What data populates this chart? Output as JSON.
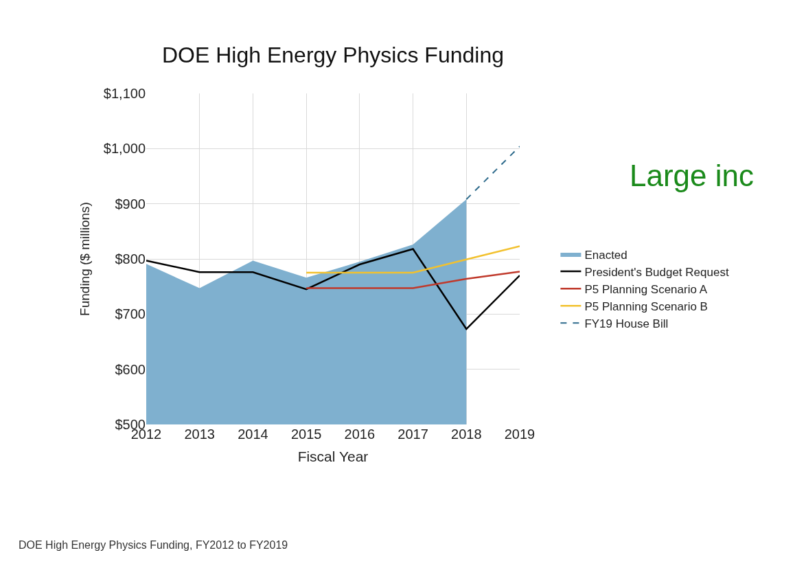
{
  "chart_data": {
    "type": "line",
    "title": "DOE High Energy Physics Funding",
    "xlabel": "Fiscal Year",
    "ylabel": "Funding ($ millions)",
    "series": [
      {
        "name": "Enacted",
        "type": "area",
        "color": "#7fb0cf",
        "x": [
          2012,
          2013,
          2014,
          2015,
          2016,
          2017,
          2018
        ],
        "values": [
          791,
          747,
          797,
          766,
          795,
          826,
          908
        ]
      },
      {
        "name": "President's Budget Request",
        "color": "#000000",
        "x": [
          2012,
          2013,
          2014,
          2015,
          2016,
          2017,
          2018,
          2019
        ],
        "values": [
          797,
          776,
          776,
          745,
          790,
          818,
          673,
          770
        ]
      },
      {
        "name": "P5 Planning Scenario A",
        "color": "#c0392b",
        "x": [
          2015,
          2016,
          2017,
          2018,
          2019
        ],
        "values": [
          747,
          747,
          747,
          764,
          777
        ]
      },
      {
        "name": "P5 Planning Scenario B",
        "color": "#f2c12e",
        "x": [
          2015,
          2016,
          2017,
          2018,
          2019
        ],
        "values": [
          775,
          775,
          775,
          799,
          823
        ]
      },
      {
        "name": "FY19 House Bill",
        "color": "#2e6b8c",
        "line_style": "dashed",
        "x": [
          2018,
          2019
        ],
        "values": [
          908,
          1004
        ]
      }
    ],
    "xlim": [
      2012,
      2019
    ],
    "xticks": [
      2012,
      2013,
      2014,
      2015,
      2016,
      2017,
      2018,
      2019
    ],
    "ylim": [
      500,
      1100
    ],
    "yticks": [
      {
        "value": 500,
        "label": "$500"
      },
      {
        "value": 600,
        "label": "$600"
      },
      {
        "value": 700,
        "label": "$700"
      },
      {
        "value": 800,
        "label": "$800"
      },
      {
        "value": 900,
        "label": "$900"
      },
      {
        "value": 1000,
        "label": "$1,000"
      },
      {
        "value": 1100,
        "label": "$1,100"
      }
    ],
    "grid": true,
    "legend": "right",
    "marker": "none",
    "line_style": "solid",
    "annotations": [
      "Large inc",
      "DOE High Energy Physics Funding, FY2012 to FY2019"
    ]
  }
}
